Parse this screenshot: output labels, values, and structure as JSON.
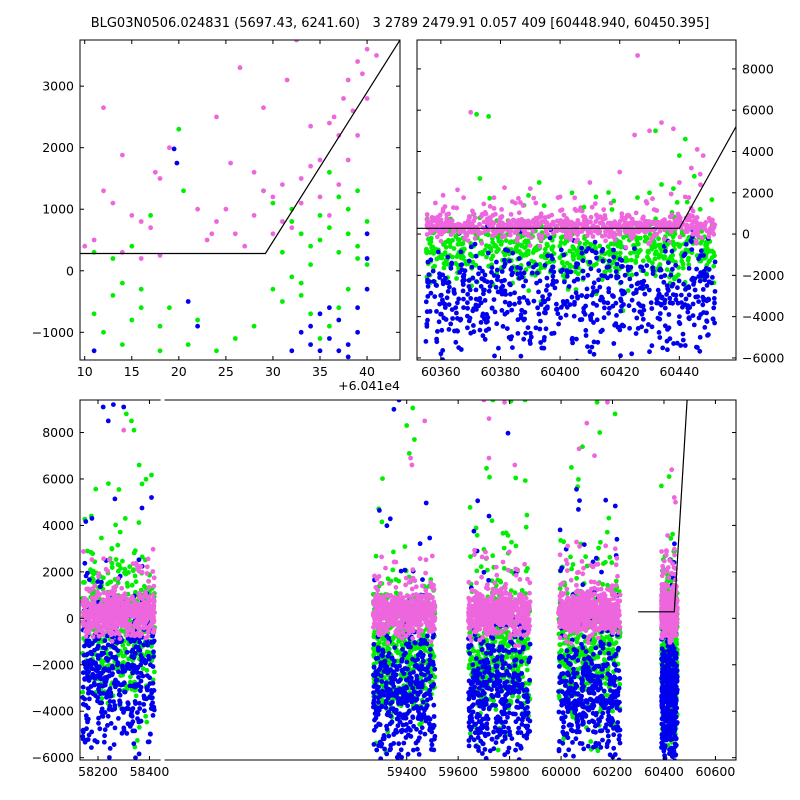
{
  "title": "BLG03N0506.024831 (5697.43, 6241.60)   3 2789 2479.91 0.057 409 [60448.940, 60450.395]",
  "colors": {
    "magenta": "#ee66dd",
    "green": "#00ee00",
    "blue": "#0000ee",
    "model": "#000000"
  },
  "chart_data": [
    {
      "id": "zoom-left",
      "type": "scatter",
      "x_offset_label": "+6.041e4",
      "xlim": [
        9.5,
        43.5
      ],
      "ylim": [
        -1450,
        3750
      ],
      "xticks": [
        10,
        15,
        20,
        25,
        30,
        35,
        40
      ],
      "yticks": [
        -1000,
        0,
        1000,
        2000,
        3000
      ],
      "ytick_side": "left",
      "model_line": [
        [
          9.5,
          280
        ],
        [
          29.2,
          280
        ],
        [
          43.5,
          3750
        ]
      ],
      "series": [
        {
          "color": "magenta",
          "points": [
            [
              12,
              2650
            ],
            [
              14,
              1880
            ],
            [
              17.5,
              1600
            ],
            [
              19,
              2000
            ],
            [
              24,
              2500
            ],
            [
              25.5,
              1750
            ],
            [
              26.5,
              3300
            ],
            [
              29,
              2650
            ],
            [
              31.5,
              3100
            ],
            [
              32.5,
              3750
            ],
            [
              34,
              2350
            ],
            [
              38,
              3100
            ],
            [
              39,
              3400
            ],
            [
              40,
              3600
            ],
            [
              41,
              3500
            ],
            [
              36,
              2400
            ],
            [
              37,
              2200
            ],
            [
              35,
              1800
            ],
            [
              31,
              1400
            ],
            [
              12,
              1300
            ],
            [
              13,
              1100
            ],
            [
              15,
              900
            ],
            [
              16,
              800
            ],
            [
              17,
              700
            ],
            [
              18,
              1500
            ],
            [
              10,
              400
            ],
            [
              11,
              500
            ],
            [
              14,
              300
            ],
            [
              16,
              200
            ],
            [
              18,
              250
            ],
            [
              23,
              500
            ],
            [
              24,
              800
            ],
            [
              25,
              1000
            ],
            [
              26,
              600
            ],
            [
              27,
              400
            ],
            [
              28,
              900
            ],
            [
              30,
              1200
            ],
            [
              32,
              700
            ],
            [
              33,
              1500
            ],
            [
              34,
              1700
            ],
            [
              35,
              1200
            ],
            [
              36,
              900
            ],
            [
              37,
              1400
            ],
            [
              38,
              1800
            ],
            [
              39,
              2200
            ],
            [
              40,
              2800
            ],
            [
              39.5,
              3200
            ],
            [
              38.5,
              2600
            ],
            [
              37.5,
              2800
            ],
            [
              36.5,
              2500
            ],
            [
              30,
              600
            ],
            [
              31,
              800
            ],
            [
              33,
              1100
            ],
            [
              29,
              1300
            ],
            [
              28,
              1600
            ],
            [
              22,
              1000
            ],
            [
              23.5,
              600
            ]
          ]
        },
        {
          "color": "green",
          "points": [
            [
              11,
              -700
            ],
            [
              12,
              -1000
            ],
            [
              13,
              -400
            ],
            [
              14,
              -1200
            ],
            [
              15,
              -800
            ],
            [
              16,
              -300
            ],
            [
              17,
              900
            ],
            [
              18,
              -1300
            ],
            [
              19,
              -600
            ],
            [
              20,
              2300
            ],
            [
              20.5,
              1300
            ],
            [
              21,
              -1200
            ],
            [
              22,
              -800
            ],
            [
              24,
              -1300
            ],
            [
              26,
              -1100
            ],
            [
              28,
              -900
            ],
            [
              30,
              -300
            ],
            [
              31,
              -500
            ],
            [
              32,
              800
            ],
            [
              33,
              -200
            ],
            [
              34,
              100
            ],
            [
              35,
              500
            ],
            [
              36,
              700
            ],
            [
              37,
              300
            ],
            [
              38,
              1000
            ],
            [
              39,
              1300
            ],
            [
              40,
              800
            ],
            [
              39,
              200
            ],
            [
              38,
              -300
            ],
            [
              37,
              -600
            ],
            [
              36,
              -900
            ],
            [
              35,
              -1100
            ],
            [
              34,
              -700
            ],
            [
              33,
              -400
            ],
            [
              32,
              -100
            ],
            [
              31,
              300
            ],
            [
              30,
              1100
            ],
            [
              29,
              1300
            ],
            [
              36,
              1600
            ],
            [
              37,
              1200
            ],
            [
              38,
              600
            ],
            [
              39,
              400
            ],
            [
              40,
              100
            ],
            [
              35,
              900
            ],
            [
              34,
              400
            ],
            [
              33,
              600
            ],
            [
              32,
              1000
            ],
            [
              14,
              -200
            ],
            [
              15,
              400
            ],
            [
              16,
              -600
            ],
            [
              18,
              -900
            ],
            [
              11,
              300
            ],
            [
              13,
              200
            ]
          ]
        },
        {
          "color": "blue",
          "points": [
            [
              11,
              -1300
            ],
            [
              19.5,
              1980
            ],
            [
              19.8,
              1750
            ],
            [
              21,
              -500
            ],
            [
              22,
              -900
            ],
            [
              34,
              -900
            ],
            [
              35,
              -1300
            ],
            [
              36,
              -1100
            ],
            [
              37,
              -800
            ],
            [
              38,
              -1400
            ],
            [
              39,
              -600
            ],
            [
              40,
              -300
            ],
            [
              40,
              200
            ],
            [
              39,
              -1000
            ],
            [
              38,
              -1200
            ],
            [
              37,
              -1300
            ],
            [
              36,
              -600
            ],
            [
              35,
              -700
            ],
            [
              34,
              -1200
            ],
            [
              33,
              -1000
            ],
            [
              32,
              -1300
            ],
            [
              40,
              600
            ]
          ]
        }
      ]
    },
    {
      "id": "zoom-right",
      "type": "scatter",
      "xlim": [
        60352,
        60459
      ],
      "ylim": [
        -6100,
        9400
      ],
      "xticks": [
        60360,
        60380,
        60400,
        60420,
        60440
      ],
      "yticks": [
        -6000,
        -4000,
        -2000,
        0,
        2000,
        4000,
        6000,
        8000
      ],
      "ytick_side": "right",
      "model_line": [
        [
          60352,
          280
        ],
        [
          60440,
          280
        ],
        [
          60459,
          5200
        ]
      ],
      "series": [
        {
          "color": "magenta",
          "points": [
            [
              60370,
              5900
            ],
            [
              60426,
              8650
            ],
            [
              60430,
              5000
            ],
            [
              60434,
              5400
            ],
            [
              60438,
              5100
            ],
            [
              60446,
              4100
            ],
            [
              60448,
              3800
            ],
            [
              60420,
              3000
            ],
            [
              60425,
              4800
            ],
            [
              60410,
              2500
            ],
            [
              60400,
              1800
            ],
            [
              60385,
              1500
            ],
            [
              60390,
              2200
            ],
            [
              60380,
              800
            ],
            [
              60395,
              600
            ],
            [
              60405,
              1200
            ],
            [
              60415,
              900
            ],
            [
              60440,
              2500
            ],
            [
              60442,
              1800
            ],
            [
              60444,
              3200
            ],
            [
              60447,
              2900
            ]
          ]
        },
        {
          "color": "green",
          "points": [
            [
              60372,
              5800
            ],
            [
              60376,
              5700
            ],
            [
              60393,
              2500
            ],
            [
              60432,
              5000
            ],
            [
              60440,
              3800
            ],
            [
              60442,
              4600
            ],
            [
              60445,
              2800
            ],
            [
              60447,
              1200
            ],
            [
              60438,
              2200
            ],
            [
              60434,
              2400
            ],
            [
              60436,
              -500
            ],
            [
              60430,
              2000
            ],
            [
              60418,
              1600
            ],
            [
              60412,
              1800
            ],
            [
              60408,
              1300
            ],
            [
              60404,
              2000
            ]
          ]
        },
        {
          "color": "blue",
          "points": [
            [
              60355,
              -5200
            ],
            [
              60360,
              -5800
            ],
            [
              60366,
              -5500
            ],
            [
              60370,
              -4800
            ],
            [
              60378,
              -5900
            ],
            [
              60384,
              -5500
            ],
            [
              60390,
              -5300
            ],
            [
              60398,
              -4800
            ],
            [
              60404,
              -5100
            ],
            [
              60410,
              -5700
            ],
            [
              60418,
              -5300
            ],
            [
              60424,
              -5800
            ],
            [
              60430,
              -5700
            ],
            [
              60436,
              -5600
            ],
            [
              60442,
              -5400
            ],
            [
              60447,
              -5000
            ],
            [
              60420,
              -4500
            ],
            [
              60440,
              -4000
            ],
            [
              60445,
              -4400
            ]
          ]
        }
      ]
    },
    {
      "id": "full",
      "type": "scatter",
      "xlim": [
        58130,
        60680
      ],
      "ylim": [
        -6100,
        9400
      ],
      "xticks": [
        58200,
        58400,
        59400,
        59600,
        59800,
        60000,
        60200,
        60400,
        60600
      ],
      "yticks": [
        -6000,
        -4000,
        -2000,
        0,
        2000,
        4000,
        6000,
        8000
      ],
      "ytick_side": "left",
      "gap_break": [
        58420,
        59240
      ],
      "model_line": [
        [
          60300,
          280
        ],
        [
          60440,
          280
        ],
        [
          60490,
          9400
        ]
      ],
      "seasons": [
        [
          58140,
          58420
        ],
        [
          59270,
          59510
        ],
        [
          59640,
          59880
        ],
        [
          59990,
          60230
        ],
        [
          60390,
          60452
        ]
      ],
      "series": [
        {
          "color": "magenta",
          "points": [
            [
              59415,
              6900
            ],
            [
              59420,
              6600
            ],
            [
              59470,
              8500
            ],
            [
              59700,
              9400
            ],
            [
              59780,
              9300
            ],
            [
              59720,
              6900
            ],
            [
              59820,
              6600
            ],
            [
              60100,
              8400
            ],
            [
              60130,
              7000
            ],
            [
              60180,
              9300
            ],
            [
              60070,
              7300
            ],
            [
              60430,
              6400
            ],
            [
              60440,
              5200
            ],
            [
              60445,
              5000
            ],
            [
              59720,
              8600
            ],
            [
              58300,
              8100
            ]
          ]
        },
        {
          "color": "green",
          "points": [
            [
              58310,
              8800
            ],
            [
              58330,
              8500
            ],
            [
              58340,
              8100
            ],
            [
              59400,
              8300
            ],
            [
              59430,
              7700
            ],
            [
              59410,
              7100
            ],
            [
              59735,
              9400
            ],
            [
              59805,
              9350
            ],
            [
              59860,
              9400
            ],
            [
              60040,
              6500
            ],
            [
              60140,
              9300
            ],
            [
              60210,
              8800
            ],
            [
              60150,
              8000
            ],
            [
              60390,
              5700
            ],
            [
              60420,
              6100
            ],
            [
              58360,
              6600
            ]
          ]
        },
        {
          "color": "blue",
          "points": [
            [
              58220,
              9100
            ],
            [
              58260,
              9200
            ],
            [
              58300,
              9100
            ],
            [
              58240,
              8500
            ],
            [
              59370,
              9400
            ],
            [
              59350,
              9000
            ],
            [
              59720,
              4400
            ]
          ]
        }
      ]
    }
  ]
}
